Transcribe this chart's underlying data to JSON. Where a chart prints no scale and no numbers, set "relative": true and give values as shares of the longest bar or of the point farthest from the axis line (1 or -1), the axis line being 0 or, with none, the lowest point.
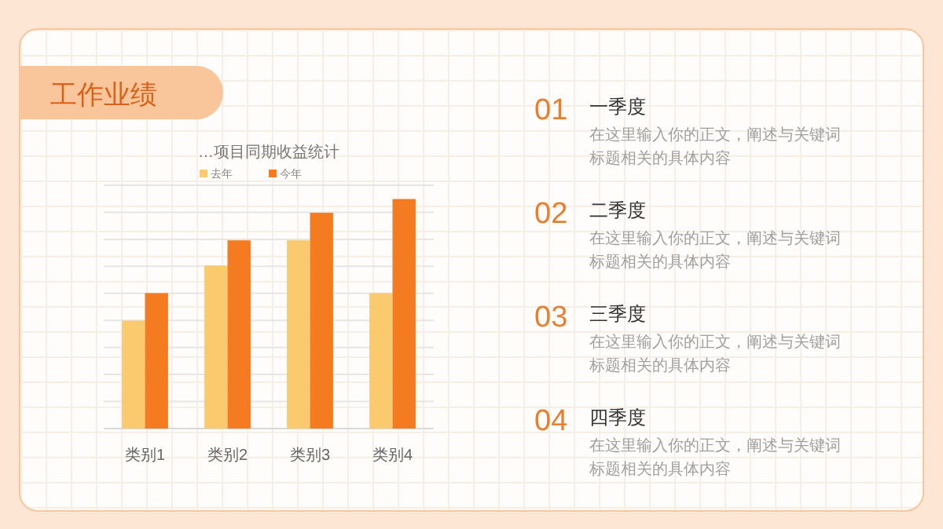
{
  "chart_data": [
    {
      "type": "other",
      "title": "工作业绩"
    },
    {
      "type": "bar",
      "title": "…项目同期收益统计",
      "relative": true,
      "categories": [
        "类别1",
        "类别2",
        "类别3",
        "类别4"
      ],
      "series": [
        {
          "name": "去年",
          "color": "#fbc96e",
          "values": [
            0.47,
            0.71,
            0.82,
            0.59
          ]
        },
        {
          "name": "今年",
          "color": "#f47b20",
          "values": [
            0.59,
            0.82,
            0.94,
            1
          ]
        }
      ],
      "legend": "top",
      "grid": "y"
    },
    {
      "type": "other",
      "annotations": [
        "01",
        "一季度",
        "在这里输入你的正文，阐述与关键词",
        "标题相关的具体内容"
      ]
    },
    {
      "type": "other",
      "annotations": [
        "02",
        "二季度",
        "在这里输入你的正文，阐述与关键词",
        "标题相关的具体内容"
      ]
    },
    {
      "type": "other",
      "annotations": [
        "03",
        "三季度",
        "在这里输入你的正文，阐述与关键词",
        "标题相关的具体内容"
      ]
    },
    {
      "type": "other",
      "annotations": [
        "04",
        "四季度",
        "在这里输入你的正文，阐述与关键词",
        "标题相关的具体内容"
      ]
    }
  ]
}
